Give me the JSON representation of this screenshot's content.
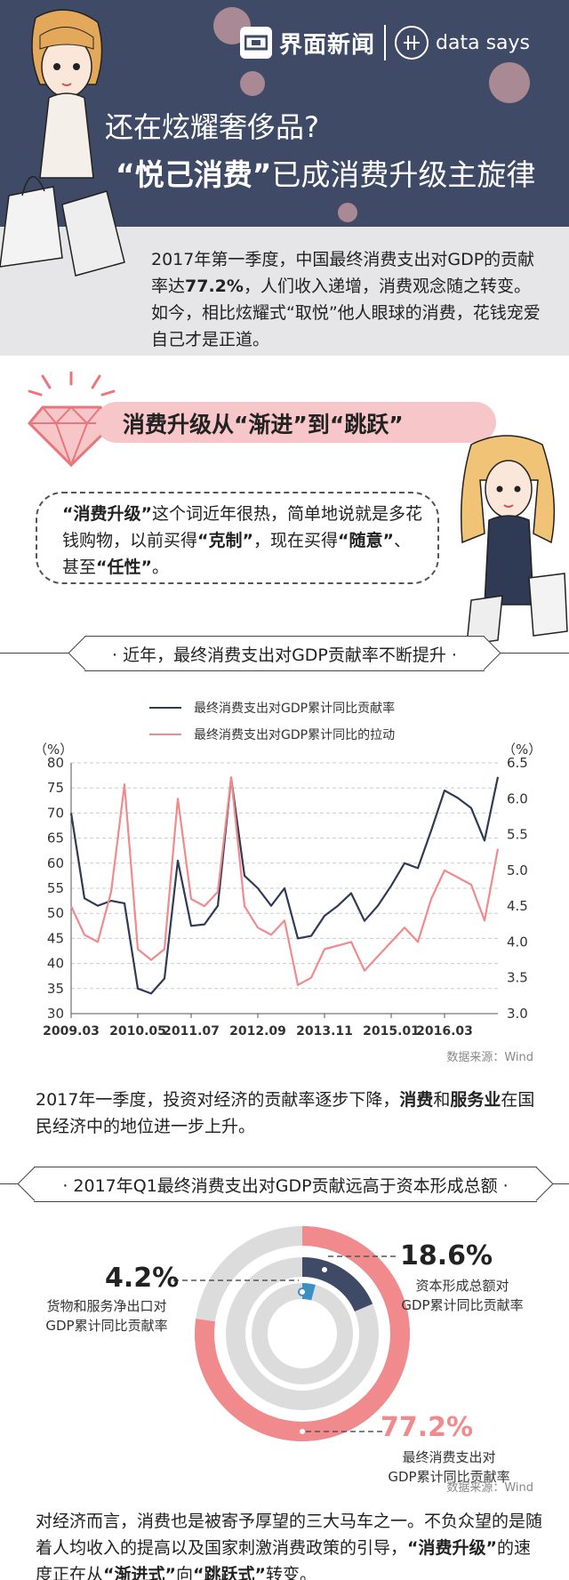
{
  "header": {
    "brand_name": "界面新闻",
    "brand_tag": "data says",
    "title_line1": "还在炫耀奢侈品?",
    "title_line2_bold": "“悦己消费”",
    "title_line2_rest": "已成消费升级主旋律"
  },
  "intro": {
    "text_a": "2017年第一季度，中国最终消费支出对GDP的贡献率达",
    "text_bold": "77.2%",
    "text_b": "，人们收入递增，消费观念随之转变。如今，相比炫耀式“取悦”他人眼球的消费，花钱宠爱自己才是正道。"
  },
  "section1": {
    "title": "消费升级从“渐进”到“跳跃”",
    "quote_bold1": "“消费升级”",
    "quote_a": "这个词近年很热，简单地说就是多花钱购物，以前买得",
    "quote_bold2": "“克制”",
    "quote_b": "，现在买得",
    "quote_bold3": "“随意”",
    "quote_c": "、甚至",
    "quote_bold4": "“任性”",
    "quote_d": "。"
  },
  "banner1": "· 近年，最终消费支出对GDP贡献率不断提升 ·",
  "banner2": "· 2017年Q1最终消费支出对GDP贡献远高于资本形成总额 ·",
  "chart_data": {
    "type": "line",
    "x": [
      "2009.03",
      "2009.06",
      "2009.09",
      "2009.12",
      "2010.03",
      "2010.05",
      "2010.09",
      "2010.12",
      "2011.03",
      "2011.07",
      "2011.09",
      "2011.12",
      "2012.03",
      "2012.06",
      "2012.09",
      "2012.12",
      "2013.03",
      "2013.06",
      "2013.09",
      "2013.11",
      "2014.03",
      "2014.06",
      "2014.09",
      "2014.12",
      "2015.01",
      "2015.06",
      "2015.09",
      "2015.12",
      "2016.03",
      "2016.06",
      "2016.09",
      "2016.12",
      "2017.03"
    ],
    "xticks": [
      "2009.03",
      "2010.05",
      "2011.07",
      "2012.09",
      "2013.11",
      "2015.01",
      "2016.03"
    ],
    "series": [
      {
        "name": "最终消费支出对GDP累计同比贡献率",
        "axis": "left",
        "color": "#2f3a55",
        "values": [
          70,
          53,
          51.5,
          52.5,
          52,
          35,
          34,
          37,
          60.5,
          47.5,
          47.8,
          51.5,
          77,
          57.5,
          55,
          51.5,
          55,
          45,
          45.5,
          49.5,
          51.5,
          54,
          48.5,
          51.5,
          55.5,
          60,
          59,
          66.5,
          74.5,
          73,
          71,
          64.5,
          77.2
        ]
      },
      {
        "name": "最终消费支出对GDP累计同比的拉动",
        "axis": "right",
        "color": "#f08a8c",
        "values": [
          4.5,
          4.1,
          4.0,
          4.7,
          6.2,
          3.9,
          3.75,
          3.9,
          6.0,
          4.6,
          4.5,
          4.7,
          6.3,
          4.5,
          4.2,
          4.1,
          4.3,
          3.4,
          3.5,
          3.9,
          3.95,
          4.0,
          3.6,
          3.8,
          4.0,
          4.2,
          4.0,
          4.6,
          5.0,
          4.9,
          4.8,
          4.3,
          5.3
        ]
      }
    ],
    "ylabel_left": "（%）",
    "ylabel_right": "（%）",
    "ylim_left": [
      30,
      80
    ],
    "yticks_left": [
      "30",
      "35",
      "40",
      "45",
      "50",
      "55",
      "60",
      "65",
      "70",
      "75",
      "80"
    ],
    "ylim_right": [
      3.0,
      6.5
    ],
    "yticks_right": [
      "3.0",
      "3.5",
      "4.0",
      "4.5",
      "5.0",
      "5.5",
      "6.0",
      "6.5"
    ],
    "grid": true,
    "legend": "top",
    "source": "数据来源：Wind"
  },
  "para1": {
    "text_a": "2017年一季度，投资对经济的贡献率逐步下降，",
    "bold1": "消费",
    "text_b": "和",
    "bold2": "服务业",
    "text_c": "在国民经济中的地位进一步上升。"
  },
  "donut": {
    "source": "数据来源：Wind",
    "items": [
      {
        "value": "18.6%",
        "desc1": "资本形成总额对",
        "desc2": "GDP累计同比贡献率",
        "color": "#3f4a66"
      },
      {
        "value": "4.2%",
        "desc1": "货物和服务净出口对",
        "desc2": "GDP累计同比贡献率",
        "color": "#3b8fc4"
      },
      {
        "value": "77.2%",
        "desc1": "最终消费支出对",
        "desc2": "GDP累计同比贡献率",
        "color": "#f08a8c"
      }
    ]
  },
  "para2": {
    "text_a": "对经济而言，消费也是被寄予厚望的三大马车之一。不负众望的是随着人均收入的提高以及国家刺激消费政策的引导，",
    "bold1": "“消费升级”",
    "text_b": "的速度正在从",
    "bold2": "“渐进式”",
    "text_c": "向",
    "bold3": "“跳跃式”",
    "text_d": "转变。"
  }
}
